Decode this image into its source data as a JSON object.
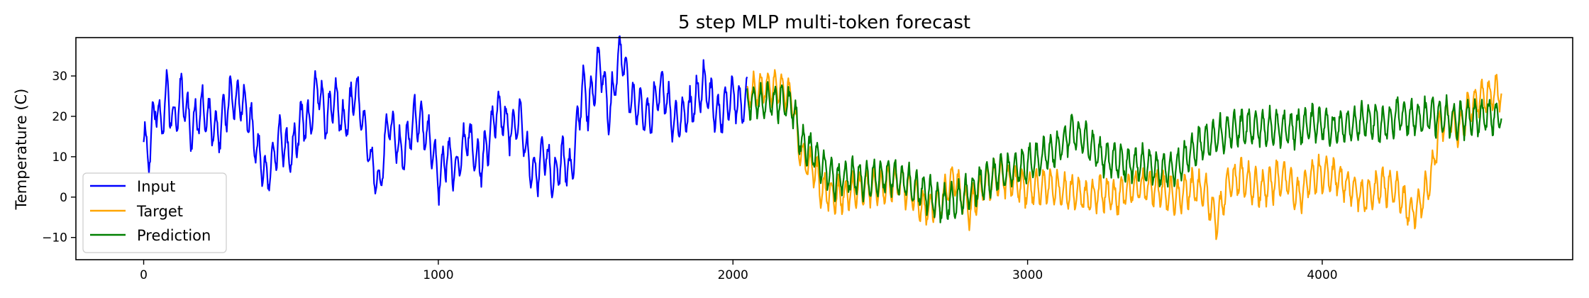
{
  "chart_data": {
    "type": "line",
    "title": "5 step MLP multi-token forecast",
    "xlabel": "",
    "ylabel": "Temperature (C)",
    "xlim": [
      -230,
      4850
    ],
    "ylim": [
      -15.5,
      39.5
    ],
    "xticks": [
      0,
      1000,
      2000,
      3000,
      4000
    ],
    "yticks": [
      -10,
      0,
      10,
      20,
      30
    ],
    "grid": false,
    "legend_position": "lower-left",
    "series": [
      {
        "name": "Input",
        "color": "#0000ff",
        "range": [
          0,
          2048
        ],
        "points": [
          [
            0,
            14
          ],
          [
            20,
            11
          ],
          [
            40,
            24
          ],
          [
            60,
            17
          ],
          [
            80,
            27
          ],
          [
            100,
            18
          ],
          [
            130,
            26
          ],
          [
            160,
            17
          ],
          [
            200,
            22
          ],
          [
            250,
            16
          ],
          [
            300,
            25
          ],
          [
            350,
            22
          ],
          [
            380,
            13
          ],
          [
            420,
            5
          ],
          [
            460,
            15
          ],
          [
            500,
            10
          ],
          [
            540,
            20
          ],
          [
            560,
            17
          ],
          [
            590,
            28
          ],
          [
            620,
            19
          ],
          [
            650,
            25
          ],
          [
            680,
            17
          ],
          [
            720,
            27
          ],
          [
            750,
            17
          ],
          [
            770,
            9
          ],
          [
            800,
            2
          ],
          [
            830,
            19
          ],
          [
            880,
            10
          ],
          [
            920,
            20
          ],
          [
            950,
            17
          ],
          [
            980,
            13
          ],
          [
            1000,
            4
          ],
          [
            1030,
            11
          ],
          [
            1060,
            6
          ],
          [
            1100,
            16
          ],
          [
            1140,
            7
          ],
          [
            1200,
            22
          ],
          [
            1250,
            16
          ],
          [
            1280,
            20
          ],
          [
            1300,
            10
          ],
          [
            1330,
            5
          ],
          [
            1360,
            12
          ],
          [
            1390,
            4
          ],
          [
            1420,
            10
          ],
          [
            1450,
            6
          ],
          [
            1470,
            16
          ],
          [
            1490,
            28
          ],
          [
            1510,
            22
          ],
          [
            1550,
            34
          ],
          [
            1580,
            20
          ],
          [
            1620,
            37
          ],
          [
            1650,
            25
          ],
          [
            1680,
            22
          ],
          [
            1720,
            20
          ],
          [
            1760,
            28
          ],
          [
            1800,
            18
          ],
          [
            1860,
            22
          ],
          [
            1900,
            28
          ],
          [
            1950,
            20
          ],
          [
            2000,
            25
          ],
          [
            2030,
            22
          ],
          [
            2048,
            24
          ]
        ],
        "oscillation": {
          "period": 24,
          "amplitude": 5.5,
          "seed": 11
        }
      },
      {
        "name": "Target",
        "color": "#ffa500",
        "range": [
          2048,
          4608
        ],
        "points": [
          [
            2048,
            25
          ],
          [
            2100,
            27
          ],
          [
            2150,
            27
          ],
          [
            2200,
            25
          ],
          [
            2230,
            10
          ],
          [
            2280,
            7
          ],
          [
            2300,
            2
          ],
          [
            2350,
            0
          ],
          [
            2400,
            1
          ],
          [
            2450,
            3
          ],
          [
            2500,
            2
          ],
          [
            2550,
            4
          ],
          [
            2600,
            2
          ],
          [
            2650,
            -3
          ],
          [
            2700,
            -2
          ],
          [
            2750,
            5
          ],
          [
            2800,
            -3
          ],
          [
            2850,
            3
          ],
          [
            2900,
            5
          ],
          [
            2950,
            4
          ],
          [
            3000,
            2
          ],
          [
            3050,
            3
          ],
          [
            3100,
            2
          ],
          [
            3150,
            1
          ],
          [
            3200,
            0
          ],
          [
            3250,
            1
          ],
          [
            3300,
            0
          ],
          [
            3350,
            2
          ],
          [
            3400,
            3
          ],
          [
            3450,
            2
          ],
          [
            3500,
            0
          ],
          [
            3550,
            2
          ],
          [
            3600,
            2
          ],
          [
            3640,
            -6
          ],
          [
            3680,
            3
          ],
          [
            3720,
            5
          ],
          [
            3760,
            3
          ],
          [
            3800,
            2
          ],
          [
            3840,
            4
          ],
          [
            3880,
            5
          ],
          [
            3920,
            0
          ],
          [
            3960,
            5
          ],
          [
            4000,
            6
          ],
          [
            4050,
            5
          ],
          [
            4100,
            2
          ],
          [
            4150,
            0
          ],
          [
            4200,
            3
          ],
          [
            4250,
            2
          ],
          [
            4300,
            -4
          ],
          [
            4340,
            -1
          ],
          [
            4370,
            5
          ],
          [
            4400,
            18
          ],
          [
            4430,
            20
          ],
          [
            4460,
            16
          ],
          [
            4500,
            22
          ],
          [
            4550,
            25
          ],
          [
            4590,
            26
          ],
          [
            4608,
            26
          ]
        ],
        "oscillation": {
          "period": 24,
          "amplitude": 4.5,
          "seed": 23
        }
      },
      {
        "name": "Prediction",
        "color": "#008000",
        "range": [
          2048,
          4608
        ],
        "points": [
          [
            2048,
            24
          ],
          [
            2100,
            23
          ],
          [
            2150,
            24
          ],
          [
            2200,
            23
          ],
          [
            2230,
            14
          ],
          [
            2280,
            10
          ],
          [
            2350,
            4
          ],
          [
            2400,
            5
          ],
          [
            2450,
            4
          ],
          [
            2500,
            5
          ],
          [
            2550,
            5
          ],
          [
            2600,
            3
          ],
          [
            2650,
            1
          ],
          [
            2700,
            -2
          ],
          [
            2750,
            -1
          ],
          [
            2800,
            1
          ],
          [
            2850,
            4
          ],
          [
            2900,
            6
          ],
          [
            2950,
            6
          ],
          [
            3000,
            8
          ],
          [
            3050,
            10
          ],
          [
            3100,
            12
          ],
          [
            3150,
            16
          ],
          [
            3200,
            14
          ],
          [
            3250,
            10
          ],
          [
            3300,
            9
          ],
          [
            3350,
            8
          ],
          [
            3400,
            8
          ],
          [
            3450,
            7
          ],
          [
            3500,
            7
          ],
          [
            3550,
            11
          ],
          [
            3600,
            14
          ],
          [
            3650,
            15
          ],
          [
            3700,
            17
          ],
          [
            3750,
            17
          ],
          [
            3800,
            17
          ],
          [
            3850,
            17
          ],
          [
            3900,
            17
          ],
          [
            3950,
            18
          ],
          [
            4000,
            18
          ],
          [
            4050,
            17
          ],
          [
            4100,
            18
          ],
          [
            4150,
            19
          ],
          [
            4200,
            18
          ],
          [
            4250,
            20
          ],
          [
            4300,
            20
          ],
          [
            4350,
            20
          ],
          [
            4400,
            20
          ],
          [
            4450,
            19
          ],
          [
            4500,
            20
          ],
          [
            4550,
            20
          ],
          [
            4608,
            20
          ]
        ],
        "oscillation": {
          "period": 24,
          "amplitude": 4.5,
          "seed": 37
        }
      }
    ]
  }
}
